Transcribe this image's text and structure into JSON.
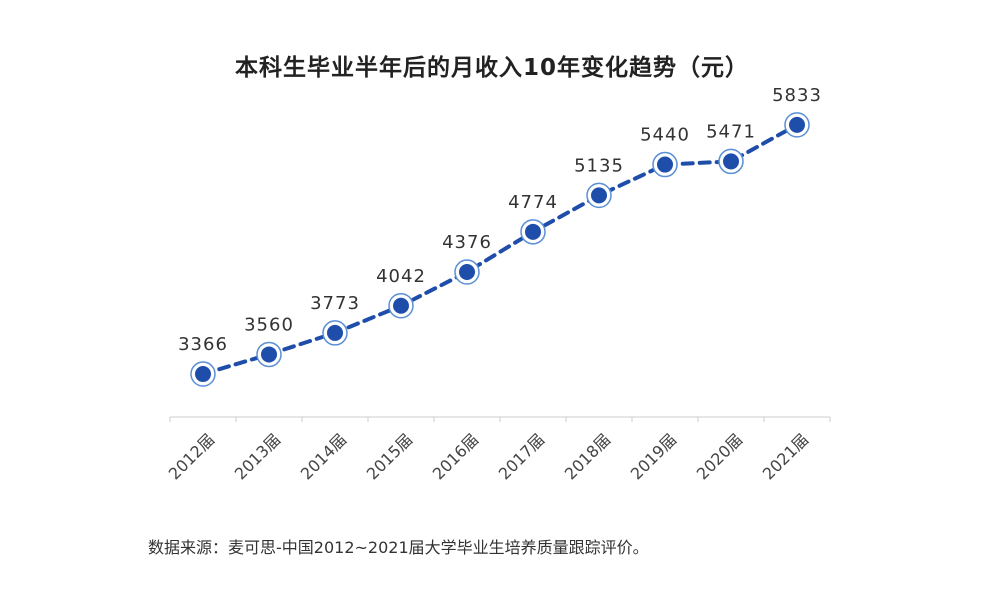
{
  "chart_data": {
    "type": "line",
    "title": "本科生毕业半年后的月收入10年变化趋势（元）",
    "categories": [
      "2012届",
      "2013届",
      "2014届",
      "2015届",
      "2016届",
      "2017届",
      "2018届",
      "2019届",
      "2020届",
      "2021届"
    ],
    "series": [
      {
        "name": "月收入",
        "values": [
          3366,
          3560,
          3773,
          4042,
          4376,
          4774,
          5135,
          5440,
          5471,
          5833
        ]
      }
    ],
    "ylim": [
      2000,
      6000
    ],
    "grid": false,
    "line_color": "#1f4eaa",
    "marker_color": "#1f4eaa",
    "marker_ring_color": "#5b8fd6",
    "axis_color": "#cccccc",
    "source": "数据来源：麦可思-中国2012~2021届大学毕业生培养质量跟踪评价。"
  }
}
